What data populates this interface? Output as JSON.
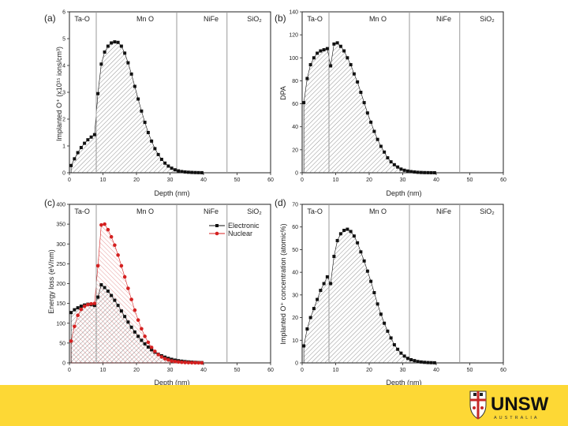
{
  "chart_data": [
    {
      "panel": "(a)",
      "type": "area",
      "xlabel": "Depth (nm)",
      "ylabel": "Implanted O⁺ (x10¹⁵ ions/cm³)",
      "xlim": [
        0,
        60
      ],
      "ylim": [
        0,
        6
      ],
      "xticks": [
        0,
        10,
        20,
        30,
        40,
        50,
        60
      ],
      "yticks": [
        0,
        1,
        2,
        3,
        4,
        5,
        6
      ],
      "boundaries": [
        8,
        32,
        47
      ],
      "regions": [
        "Ta-O",
        "Mn O",
        "NiFe",
        "SiO₂"
      ],
      "series": [
        {
          "name": "O+",
          "color": "#111111",
          "x": [
            0.5,
            1.5,
            2.5,
            3.5,
            4.5,
            5.5,
            6.5,
            7.5,
            8.5,
            9.5,
            10.5,
            11.5,
            12.5,
            13.5,
            14.5,
            15.5,
            16.5,
            17.5,
            18.5,
            19.5,
            20.5,
            21.5,
            22.5,
            23.5,
            24.5,
            25.5,
            26.5,
            27.5,
            28.5,
            29.5,
            30.5,
            31.5,
            32.5,
            33.5,
            34.5,
            35.5,
            36.5,
            37.5,
            38.5,
            39.5
          ],
          "y": [
            0.27,
            0.52,
            0.75,
            0.94,
            1.1,
            1.23,
            1.33,
            1.42,
            2.95,
            4.05,
            4.5,
            4.72,
            4.84,
            4.88,
            4.86,
            4.72,
            4.46,
            4.1,
            3.68,
            3.22,
            2.75,
            2.3,
            1.88,
            1.5,
            1.18,
            0.9,
            0.68,
            0.5,
            0.36,
            0.25,
            0.17,
            0.11,
            0.07,
            0.045,
            0.03,
            0.02,
            0.013,
            0.008,
            0.005,
            0.003
          ]
        }
      ]
    },
    {
      "panel": "(b)",
      "type": "area",
      "xlabel": "Depth (nm)",
      "ylabel": "DPA",
      "xlim": [
        0,
        60
      ],
      "ylim": [
        0,
        140
      ],
      "xticks": [
        0,
        10,
        20,
        30,
        40,
        50,
        60
      ],
      "yticks": [
        0,
        20,
        40,
        60,
        80,
        100,
        120,
        140
      ],
      "boundaries": [
        8,
        32,
        47
      ],
      "regions": [
        "Ta-O",
        "Mn O",
        "NiFe",
        "SiO₂"
      ],
      "series": [
        {
          "name": "DPA",
          "color": "#111111",
          "x": [
            0.5,
            1.5,
            2.5,
            3.5,
            4.5,
            5.5,
            6.5,
            7.5,
            8.5,
            9.5,
            10.5,
            11.5,
            12.5,
            13.5,
            14.5,
            15.5,
            16.5,
            17.5,
            18.5,
            19.5,
            20.5,
            21.5,
            22.5,
            23.5,
            24.5,
            25.5,
            26.5,
            27.5,
            28.5,
            29.5,
            30.5,
            31.5,
            32.5,
            33.5,
            34.5,
            35.5,
            36.5,
            37.5,
            38.5,
            39.5
          ],
          "y": [
            61,
            82,
            94,
            100,
            104,
            106,
            107,
            108,
            93,
            112,
            113,
            110,
            106,
            100,
            94,
            86,
            79,
            70,
            61,
            52,
            44,
            36,
            29,
            23,
            18,
            13,
            9.5,
            7,
            5,
            3.2,
            2.2,
            1.5,
            1,
            0.7,
            0.4,
            0.25,
            0.15,
            0.1,
            0.06,
            0.03
          ]
        }
      ]
    },
    {
      "panel": "(c)",
      "type": "area",
      "xlabel": "Depth (nm)",
      "ylabel": "Energy loss (eV/nm)",
      "xlim": [
        0,
        60
      ],
      "ylim": [
        0,
        400
      ],
      "xticks": [
        0,
        10,
        20,
        30,
        40,
        50,
        60
      ],
      "yticks": [
        0,
        50,
        100,
        150,
        200,
        250,
        300,
        350,
        400
      ],
      "boundaries": [
        8,
        32,
        47
      ],
      "regions": [
        "Ta-O",
        "Mn O",
        "NiFe",
        "SiO₂"
      ],
      "legend": {
        "placement": "top-right",
        "entries": [
          "Electronic",
          "Nuclear"
        ]
      },
      "series": [
        {
          "name": "Electronic",
          "color": "#111111",
          "x": [
            0.5,
            1.5,
            2.5,
            3.5,
            4.5,
            5.5,
            6.5,
            7.5,
            8.5,
            9.5,
            10.5,
            11.5,
            12.5,
            13.5,
            14.5,
            15.5,
            16.5,
            17.5,
            18.5,
            19.5,
            20.5,
            21.5,
            22.5,
            23.5,
            24.5,
            25.5,
            26.5,
            27.5,
            28.5,
            29.5,
            30.5,
            31.5,
            32.5,
            33.5,
            34.5,
            35.5,
            36.5,
            37.5,
            38.5,
            39.5
          ],
          "y": [
            127,
            134,
            139,
            143,
            146,
            148,
            147,
            145,
            166,
            197,
            190,
            181,
            170,
            158,
            145,
            131,
            117,
            103,
            90,
            78,
            67,
            57,
            48,
            40,
            33,
            27,
            22,
            18,
            14.5,
            11.5,
            9,
            7,
            5.5,
            4.3,
            3.3,
            2.5,
            1.9,
            1.4,
            1,
            0.7
          ]
        },
        {
          "name": "Nuclear",
          "color": "#d42020",
          "x": [
            0.5,
            1.5,
            2.5,
            3.5,
            4.5,
            5.5,
            6.5,
            7.5,
            8.5,
            9.5,
            10.5,
            11.5,
            12.5,
            13.5,
            14.5,
            15.5,
            16.5,
            17.5,
            18.5,
            19.5,
            20.5,
            21.5,
            22.5,
            23.5,
            24.5,
            25.5,
            26.5,
            27.5,
            28.5,
            29.5,
            30.5,
            31.5,
            32.5,
            33.5,
            34.5,
            35.5,
            36.5,
            37.5,
            38.5,
            39.5
          ],
          "y": [
            55,
            92,
            120,
            135,
            143,
            147,
            149,
            150,
            245,
            348,
            350,
            336,
            318,
            297,
            272,
            245,
            217,
            188,
            160,
            133,
            108,
            86,
            67,
            52,
            39,
            29,
            21,
            15,
            10.5,
            7.5,
            5,
            3.5,
            2.4,
            1.6,
            1.1,
            0.7,
            0.45,
            0.3,
            0.2,
            0.1
          ]
        }
      ]
    },
    {
      "panel": "(d)",
      "type": "area",
      "xlabel": "Depth (nm)",
      "ylabel": "Implanted O⁺ concentration (atomic%)",
      "xlim": [
        0,
        60
      ],
      "ylim": [
        0,
        70
      ],
      "xticks": [
        0,
        10,
        20,
        30,
        40,
        50,
        60
      ],
      "yticks": [
        0,
        10,
        20,
        30,
        40,
        50,
        60,
        70
      ],
      "boundaries": [
        8,
        32,
        47
      ],
      "regions": [
        "Ta-O",
        "Mn O",
        "NiFe",
        "SiO₂"
      ],
      "series": [
        {
          "name": "O+ concentration",
          "color": "#111111",
          "x": [
            0.5,
            1.5,
            2.5,
            3.5,
            4.5,
            5.5,
            6.5,
            7.5,
            8.5,
            9.5,
            10.5,
            11.5,
            12.5,
            13.5,
            14.5,
            15.5,
            16.5,
            17.5,
            18.5,
            19.5,
            20.5,
            21.5,
            22.5,
            23.5,
            24.5,
            25.5,
            26.5,
            27.5,
            28.5,
            29.5,
            30.5,
            31.5,
            32.5,
            33.5,
            34.5,
            35.5,
            36.5,
            37.5,
            38.5,
            39.5
          ],
          "y": [
            7.5,
            15,
            20,
            24,
            28,
            32,
            35,
            38,
            35,
            47,
            54,
            57,
            58.5,
            59,
            58,
            56,
            53,
            49,
            45,
            40.5,
            36,
            31,
            26,
            21.5,
            17.5,
            14,
            11,
            8,
            6,
            4.3,
            3,
            2,
            1.4,
            1,
            0.6,
            0.4,
            0.25,
            0.15,
            0.1,
            0.05
          ]
        }
      ]
    }
  ],
  "footer": {
    "logo_text": "UNSW",
    "logo_subtext": "AUSTRALIA",
    "background": "#fdd835"
  }
}
